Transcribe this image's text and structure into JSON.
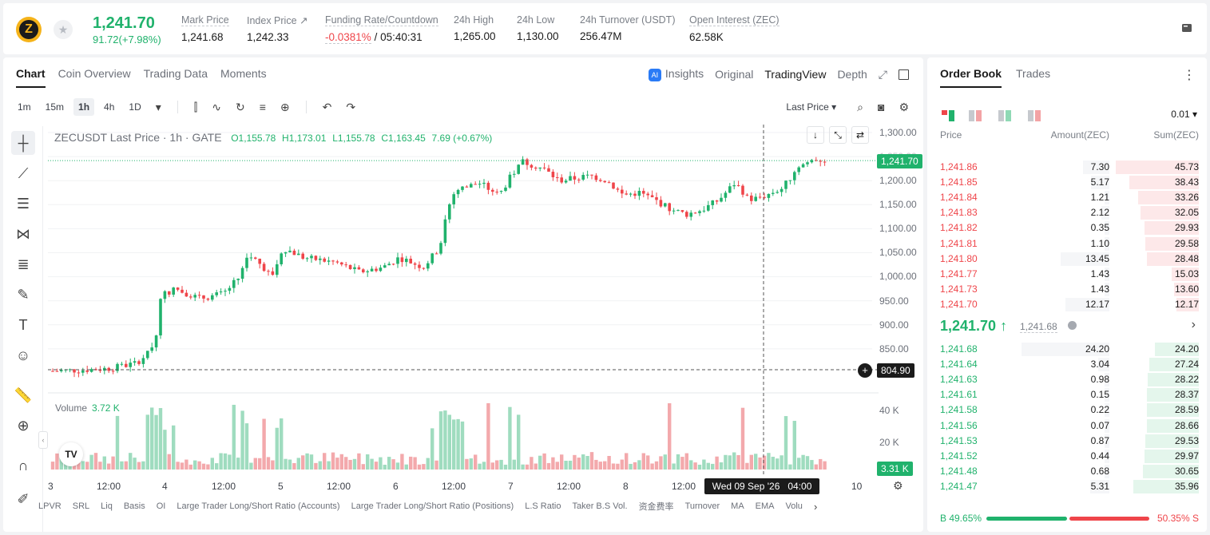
{
  "ticker": {
    "logo_letter": "Z",
    "last_price": "1,241.70",
    "change": "91.72(+7.98%)",
    "stats": [
      {
        "label": "Mark Price",
        "value": "1,241.68"
      },
      {
        "label": "Index Price ↗",
        "value": "1,242.33"
      },
      {
        "label": "Funding Rate/Countdown",
        "value_neg": "-0.0381%",
        "value": "/ 05:40:31"
      },
      {
        "label": "24h High",
        "value": "1,265.00"
      },
      {
        "label": "24h Low",
        "value": "1,130.00"
      },
      {
        "label": "24h Turnover (USDT)",
        "value": "256.47M"
      },
      {
        "label": "Open Interest (ZEC)",
        "value": "62.58K"
      }
    ]
  },
  "chart_tabs": [
    "Chart",
    "Coin Overview",
    "Trading Data",
    "Moments"
  ],
  "view_tabs": {
    "insights": "Insights",
    "original": "Original",
    "tradingview": "TradingView",
    "depth": "Depth",
    "ai_badge": "AI"
  },
  "timeframes": [
    "1m",
    "15m",
    "1h",
    "4h",
    "1D"
  ],
  "price_type": "Last Price ▾",
  "legend": {
    "symbol": "ZECUSDT Last Price · 1h · GATE",
    "o": "O1,155.78",
    "h": "H1,173.01",
    "l": "L1,155.78",
    "c": "C1,163.45",
    "chg": "7.69 (+0.67%)"
  },
  "volume_legend": {
    "label": "Volume",
    "value": "3.72 K"
  },
  "price_axis": [
    "1,300.00",
    "1,250.00",
    "1,200.00",
    "1,150.00",
    "1,100.00",
    "1,050.00",
    "1,000.00",
    "950.00",
    "900.00",
    "850.00"
  ],
  "volume_axis": [
    "40 K",
    "20 K"
  ],
  "last_price_tag": "1,241.70",
  "crosshair_price_tag": "804.90",
  "volume_tag": "3.31 K",
  "crosshair_time": "Wed 09 Sep '26   04:00",
  "time_axis": [
    "3",
    "12:00",
    "4",
    "12:00",
    "5",
    "12:00",
    "6",
    "12:00",
    "7",
    "12:00",
    "8",
    "12:00",
    "10"
  ],
  "indicators": [
    "LPVR",
    "SRL",
    "Liq",
    "Basis",
    "OI",
    "Large Trader Long/Short Ratio (Accounts)",
    "Large Trader Long/Short Ratio (Positions)",
    "L.S Ratio",
    "Taker B.S Vol.",
    "资金费率",
    "Turnover",
    "MA",
    "EMA",
    "Volu"
  ],
  "orderbook": {
    "tabs": [
      "Order Book",
      "Trades"
    ],
    "precision": "0.01 ▾",
    "headers": {
      "price": "Price",
      "amount": "Amount(ZEC)",
      "sum": "Sum(ZEC)"
    },
    "asks": [
      {
        "price": "1,241.86",
        "amount": "7.30",
        "sum": "45.73"
      },
      {
        "price": "1,241.85",
        "amount": "5.17",
        "sum": "38.43"
      },
      {
        "price": "1,241.84",
        "amount": "1.21",
        "sum": "33.26"
      },
      {
        "price": "1,241.83",
        "amount": "2.12",
        "sum": "32.05"
      },
      {
        "price": "1,241.82",
        "amount": "0.35",
        "sum": "29.93"
      },
      {
        "price": "1,241.81",
        "amount": "1.10",
        "sum": "29.58"
      },
      {
        "price": "1,241.80",
        "amount": "13.45",
        "sum": "28.48"
      },
      {
        "price": "1,241.77",
        "amount": "1.43",
        "sum": "15.03"
      },
      {
        "price": "1,241.73",
        "amount": "1.43",
        "sum": "13.60"
      },
      {
        "price": "1,241.70",
        "amount": "12.17",
        "sum": "12.17"
      }
    ],
    "mid_price": "1,241.70 ↑",
    "mid_mark": "1,241.68",
    "bids": [
      {
        "price": "1,241.68",
        "amount": "24.20",
        "sum": "24.20"
      },
      {
        "price": "1,241.64",
        "amount": "3.04",
        "sum": "27.24"
      },
      {
        "price": "1,241.63",
        "amount": "0.98",
        "sum": "28.22"
      },
      {
        "price": "1,241.61",
        "amount": "0.15",
        "sum": "28.37"
      },
      {
        "price": "1,241.58",
        "amount": "0.22",
        "sum": "28.59"
      },
      {
        "price": "1,241.56",
        "amount": "0.07",
        "sum": "28.66"
      },
      {
        "price": "1,241.53",
        "amount": "0.87",
        "sum": "29.53"
      },
      {
        "price": "1,241.52",
        "amount": "0.44",
        "sum": "29.97"
      },
      {
        "price": "1,241.48",
        "amount": "0.68",
        "sum": "30.65"
      },
      {
        "price": "1,241.47",
        "amount": "5.31",
        "sum": "35.96"
      }
    ],
    "buy_ratio": "B 49.65%",
    "sell_ratio": "50.35% S",
    "buy_fraction": 0.4965
  },
  "colors": {
    "up": "#20b26c",
    "down": "#ef454a"
  }
}
